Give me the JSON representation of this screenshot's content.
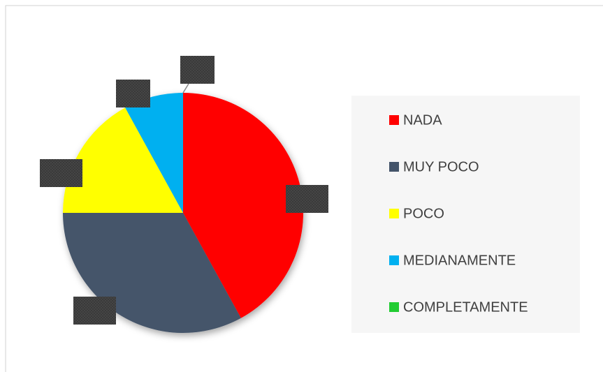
{
  "chart_data": {
    "type": "pie",
    "categories": [
      "NADA",
      "MUY POCO",
      "POCO",
      "MEDIANAMENTE",
      "COMPLETAMENTE"
    ],
    "values": [
      42,
      33,
      17,
      8,
      0
    ],
    "colors": [
      "#ff0000",
      "#44546a",
      "#ffff00",
      "#00b0f0",
      "#22cc33"
    ],
    "legend": "right"
  }
}
